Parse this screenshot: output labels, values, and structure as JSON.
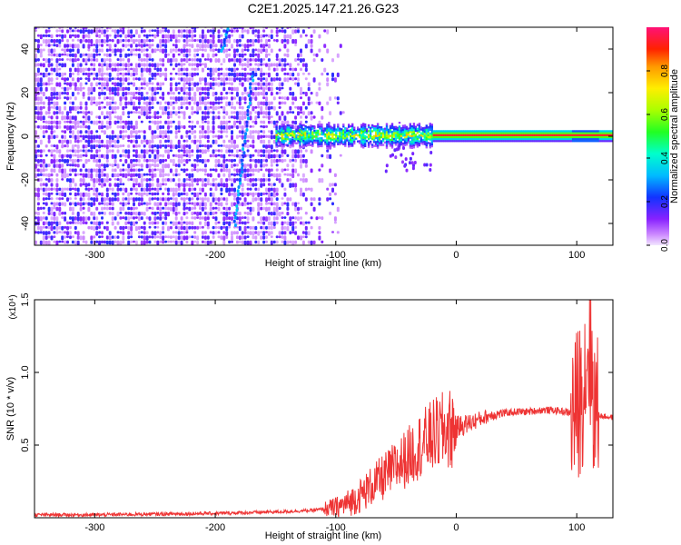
{
  "title": "C2E1.2025.147.21.26.G23",
  "colors": {
    "snr_line": "#ee3333",
    "background": "#ffffff",
    "axis": "#000000"
  },
  "chart_data": [
    {
      "type": "heatmap",
      "title": "C2E1.2025.147.21.26.G23",
      "xlabel": "Height of straight line (km)",
      "ylabel": "Frequency (Hz)",
      "xlim": [
        -350,
        130
      ],
      "ylim": [
        -50,
        50
      ],
      "x_ticks": [
        -300,
        -200,
        -100,
        0,
        100
      ],
      "y_ticks": [
        -40,
        -20,
        0,
        20,
        40
      ],
      "colorbar": {
        "label": "Normalized spectral amplitude",
        "range": [
          0,
          1
        ],
        "ticks": [
          0.0,
          0.2,
          0.4,
          0.6,
          0.8
        ]
      },
      "features": {
        "noise_region_x": [
          -350,
          -100
        ],
        "tone_start_x": -150,
        "tone_frequency_hz": 0,
        "saturated_from_x": -20,
        "chirp_line": {
          "x": [
            -185,
            -170
          ],
          "y": [
            -40,
            30
          ]
        },
        "chirp_line_upper": {
          "x": [
            -195,
            -190
          ],
          "y": [
            40,
            50
          ]
        }
      }
    },
    {
      "type": "line",
      "xlabel": "Height of straight line (km)",
      "ylabel": "SNR (10 * v/v)",
      "y_multiplier": "(x10⁴)",
      "xlim": [
        -350,
        130
      ],
      "ylim": [
        0,
        1.5
      ],
      "x_ticks": [
        -300,
        -200,
        -100,
        0,
        100
      ],
      "y_ticks": [
        0.5,
        1.0,
        1.5
      ],
      "series": [
        {
          "x": [
            -350,
            -300,
            -250,
            -200,
            -150,
            -120,
            -100,
            -90,
            -80,
            -70,
            -60,
            -50,
            -40,
            -30,
            -20,
            -10,
            0,
            10,
            20,
            30,
            40,
            50,
            60,
            70,
            80,
            90,
            95,
            100,
            105,
            110,
            115,
            120,
            130
          ],
          "y": [
            0.02,
            0.02,
            0.025,
            0.03,
            0.04,
            0.05,
            0.07,
            0.1,
            0.15,
            0.22,
            0.28,
            0.35,
            0.42,
            0.5,
            0.56,
            0.6,
            0.62,
            0.65,
            0.68,
            0.71,
            0.72,
            0.73,
            0.73,
            0.74,
            0.74,
            0.73,
            0.72,
            0.75,
            0.9,
            1.2,
            0.75,
            0.7,
            0.69
          ]
        }
      ]
    }
  ]
}
